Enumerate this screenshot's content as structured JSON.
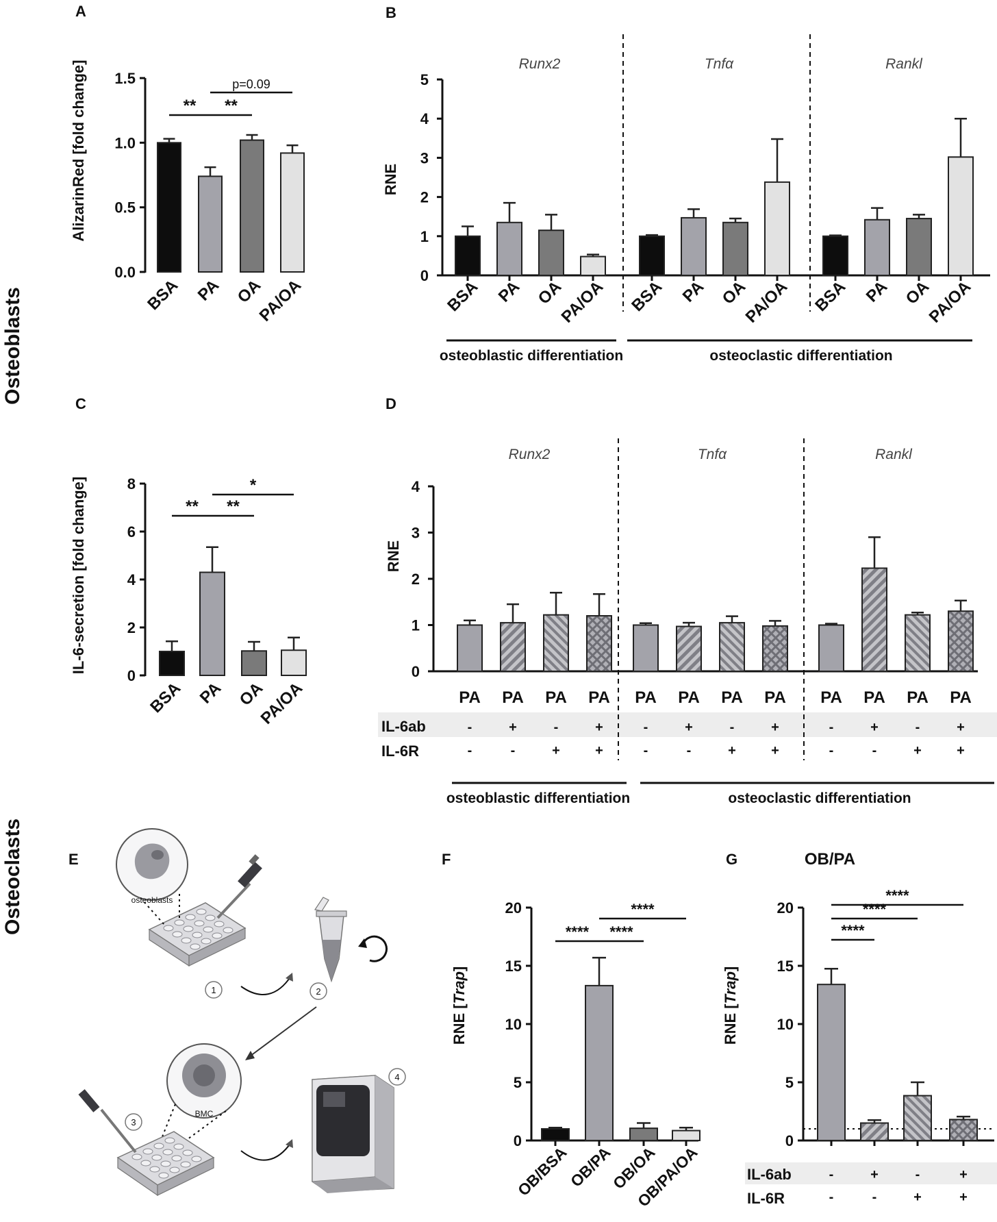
{
  "figure": {
    "side_labels": {
      "osteoblasts": "Osteoblasts",
      "osteoclasts": "Osteoclasts"
    },
    "colors": {
      "BSA": "#0d0d0d",
      "PA": "#a3a3aa",
      "OA": "#7a7a7a",
      "PA/OA": "#e2e2e2",
      "hatch": "#8d8d94"
    }
  },
  "chart_data": [
    {
      "id": "A",
      "panel_label": "A",
      "type": "bar",
      "title": "",
      "ylabel": "AlizarinRed [fold change]",
      "categories": [
        "BSA",
        "PA",
        "OA",
        "PA/OA"
      ],
      "values": [
        1.0,
        0.74,
        1.02,
        0.92
      ],
      "errors": [
        0.03,
        0.07,
        0.04,
        0.06
      ],
      "ylim": [
        0,
        1.5
      ],
      "yticks": [
        "0.0",
        "0.5",
        "1.0",
        "1.5"
      ],
      "significance": [
        {
          "from": 0,
          "to": 1,
          "label": "**"
        },
        {
          "from": 1,
          "to": 2,
          "label": "**"
        },
        {
          "from": 1,
          "to": 3,
          "label": "p=0.09"
        }
      ]
    },
    {
      "id": "B",
      "panel_label": "B",
      "type": "bar",
      "ylabel": "RNE",
      "ylim": [
        0,
        5
      ],
      "yticks": [
        "0",
        "1",
        "2",
        "3",
        "4",
        "5"
      ],
      "groups": [
        {
          "gene": "Runx2",
          "categories": [
            "BSA",
            "PA",
            "OA",
            "PA/OA"
          ],
          "values": [
            1.0,
            1.35,
            1.15,
            0.48
          ],
          "errors": [
            0.25,
            0.5,
            0.4,
            0.05
          ]
        },
        {
          "gene": "Tnfα",
          "categories": [
            "BSA",
            "PA",
            "OA",
            "PA/OA"
          ],
          "values": [
            1.0,
            1.47,
            1.35,
            2.38
          ],
          "errors": [
            0.03,
            0.22,
            0.1,
            1.1
          ]
        },
        {
          "gene": "Rankl",
          "categories": [
            "BSA",
            "PA",
            "OA",
            "PA/OA"
          ],
          "values": [
            1.0,
            1.42,
            1.45,
            3.02
          ],
          "errors": [
            0.02,
            0.3,
            0.1,
            0.98
          ]
        }
      ],
      "brackets": [
        "osteoblastic differentiation",
        "osteoclastic differentiation"
      ]
    },
    {
      "id": "C",
      "panel_label": "C",
      "type": "bar",
      "ylabel": "IL-6-secretion [fold change]",
      "categories": [
        "BSA",
        "PA",
        "OA",
        "PA/OA"
      ],
      "values": [
        1.0,
        4.3,
        1.02,
        1.05
      ],
      "errors": [
        0.42,
        1.05,
        0.38,
        0.53
      ],
      "ylim": [
        0,
        8
      ],
      "yticks": [
        "0",
        "2",
        "4",
        "6",
        "8"
      ],
      "significance": [
        {
          "from": 0,
          "to": 1,
          "label": "**"
        },
        {
          "from": 1,
          "to": 2,
          "label": "**"
        },
        {
          "from": 1,
          "to": 3,
          "label": "*"
        }
      ]
    },
    {
      "id": "D",
      "panel_label": "D",
      "type": "bar",
      "ylabel": "RNE",
      "ylim": [
        0,
        4
      ],
      "yticks": [
        "0",
        "1",
        "2",
        "3",
        "4"
      ],
      "row_labels": [
        "IL-6ab",
        "IL-6R"
      ],
      "groups": [
        {
          "gene": "Runx2",
          "categories": [
            "PA",
            "PA",
            "PA",
            "PA"
          ],
          "values": [
            1.0,
            1.05,
            1.22,
            1.2
          ],
          "errors": [
            0.1,
            0.4,
            0.48,
            0.47
          ],
          "il6ab": [
            "-",
            "+",
            "-",
            "+"
          ],
          "il6r": [
            "-",
            "-",
            "+",
            "+"
          ]
        },
        {
          "gene": "Tnfα",
          "categories": [
            "PA",
            "PA",
            "PA",
            "PA"
          ],
          "values": [
            1.0,
            0.97,
            1.05,
            0.98
          ],
          "errors": [
            0.04,
            0.08,
            0.14,
            0.11
          ],
          "il6ab": [
            "-",
            "+",
            "-",
            "+"
          ],
          "il6r": [
            "-",
            "-",
            "+",
            "+"
          ]
        },
        {
          "gene": "Rankl",
          "categories": [
            "PA",
            "PA",
            "PA",
            "PA"
          ],
          "values": [
            1.0,
            2.23,
            1.22,
            1.3
          ],
          "errors": [
            0.03,
            0.67,
            0.05,
            0.23
          ],
          "il6ab": [
            "-",
            "+",
            "-",
            "+"
          ],
          "il6r": [
            "-",
            "-",
            "+",
            "+"
          ]
        }
      ],
      "brackets": [
        "osteoblastic differentiation",
        "osteoclastic differentiation"
      ]
    },
    {
      "id": "F",
      "panel_label": "F",
      "type": "bar",
      "ylabel_prefix": "RNE [",
      "ylabel_italic": "Trap",
      "ylabel_suffix": "]",
      "categories": [
        "OB/BSA",
        "OB/PA",
        "OB/OA",
        "OB/PA/OA"
      ],
      "values": [
        1.0,
        13.3,
        1.05,
        0.85
      ],
      "errors": [
        0.1,
        2.4,
        0.45,
        0.25
      ],
      "ylim": [
        0,
        20
      ],
      "yticks": [
        "0",
        "5",
        "10",
        "15",
        "20"
      ],
      "significance": [
        {
          "from": 0,
          "to": 1,
          "label": "****"
        },
        {
          "from": 1,
          "to": 2,
          "label": "****"
        },
        {
          "from": 1,
          "to": 3,
          "label": "****"
        }
      ]
    },
    {
      "id": "G",
      "panel_label": "G",
      "type": "bar",
      "title": "OB/PA",
      "ylabel_prefix": "RNE [",
      "ylabel_italic": "Trap",
      "ylabel_suffix": "]",
      "values": [
        13.4,
        1.5,
        3.85,
        1.8
      ],
      "errors": [
        1.35,
        0.25,
        1.15,
        0.25
      ],
      "ylim": [
        0,
        20
      ],
      "yticks": [
        "0",
        "5",
        "10",
        "15",
        "20"
      ],
      "baseline": 1,
      "row_labels": [
        "IL-6ab",
        "IL-6R"
      ],
      "il6ab": [
        "-",
        "+",
        "-",
        "+"
      ],
      "il6r": [
        "-",
        "-",
        "+",
        "+"
      ],
      "significance": [
        {
          "from": 0,
          "to": 1,
          "label": "****"
        },
        {
          "from": 0,
          "to": 2,
          "label": "****"
        },
        {
          "from": 0,
          "to": 3,
          "label": "****"
        }
      ]
    }
  ],
  "schematic": {
    "panel_label": "E",
    "osteoblasts_label": "osteoblasts",
    "bmc_label": "BMC",
    "steps": [
      "1",
      "2",
      "3",
      "4"
    ]
  }
}
